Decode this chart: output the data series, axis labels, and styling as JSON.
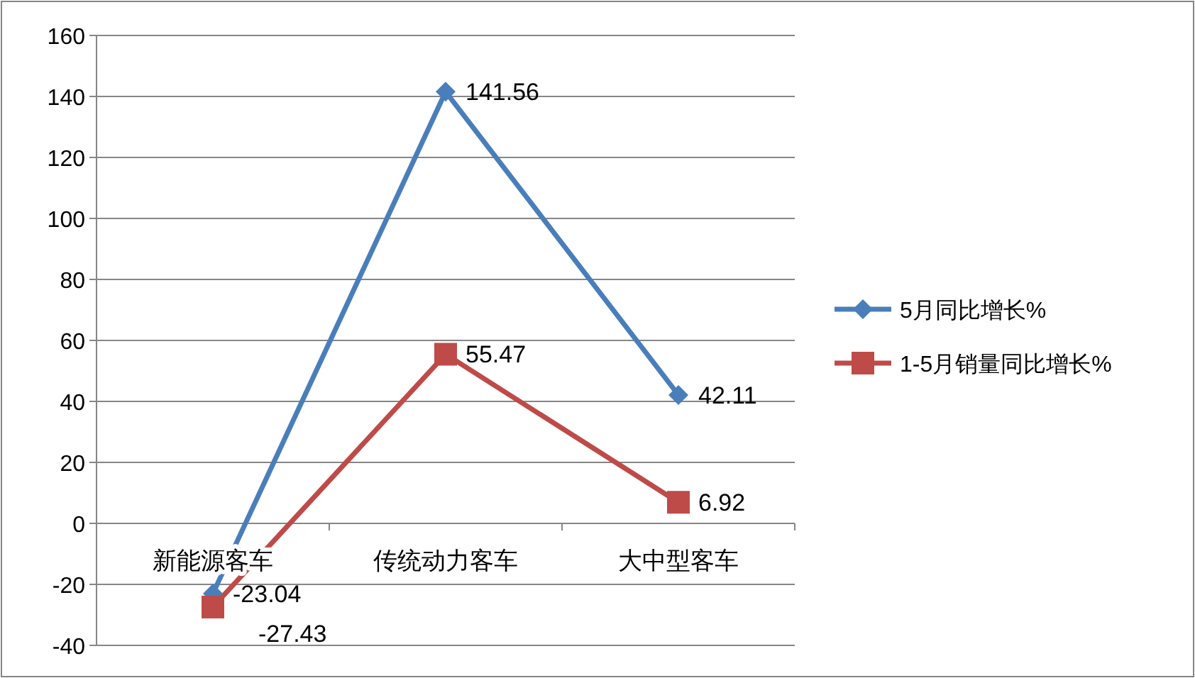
{
  "chart_data": {
    "type": "line",
    "categories": [
      "新能源客车",
      "传统动力客车",
      "大中型客车"
    ],
    "series": [
      {
        "name": "5月同比增长%",
        "color": "#4a7ebb",
        "marker": "diamond",
        "values": [
          -23.04,
          141.56,
          42.11
        ]
      },
      {
        "name": "1-5月销量同比增长%",
        "color": "#be4b48",
        "marker": "square",
        "values": [
          -27.43,
          55.47,
          6.92
        ]
      }
    ],
    "ylim": [
      -40,
      160
    ],
    "yticks": [
      -40,
      -20,
      0,
      20,
      40,
      60,
      80,
      100,
      120,
      140,
      160
    ],
    "grid": "y",
    "legend": "right",
    "data_labels": true
  }
}
